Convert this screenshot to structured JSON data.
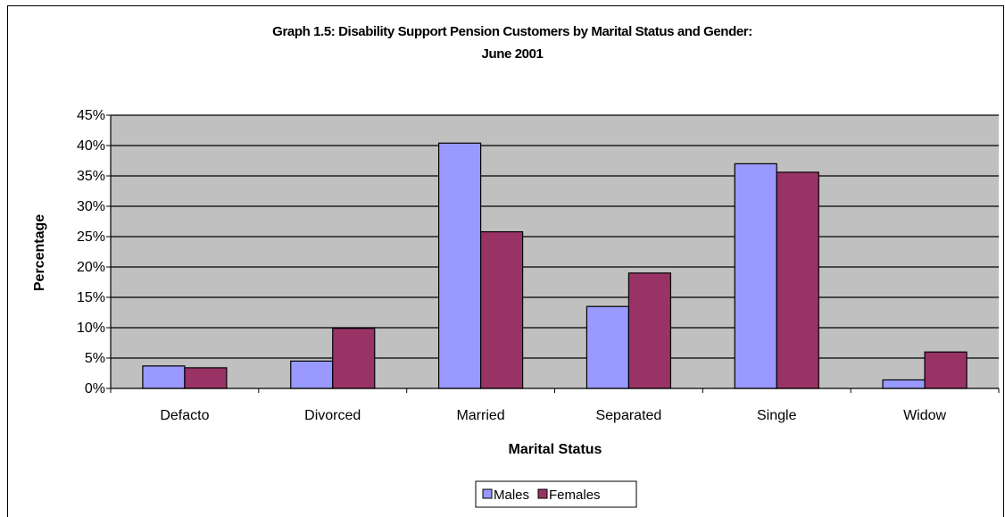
{
  "chart_data": {
    "type": "bar",
    "title_line1": "Graph 1.5: Disability Support Pension Customers by Marital Status and Gender:",
    "title_line2": "June 2001",
    "xlabel": "Marital Status",
    "ylabel": "Percentage",
    "categories": [
      "Defacto",
      "Divorced",
      "Married",
      "Separated",
      "Single",
      "Widow"
    ],
    "series": [
      {
        "name": "Males",
        "values": [
          3.7,
          4.5,
          40.4,
          13.5,
          37.0,
          1.4
        ],
        "color": "#9999ff"
      },
      {
        "name": "Females",
        "values": [
          3.4,
          9.9,
          25.8,
          19.0,
          35.6,
          6.0
        ],
        "color": "#993366"
      }
    ],
    "ylim": [
      0,
      45
    ],
    "yticks": [
      0,
      5,
      10,
      15,
      20,
      25,
      30,
      35,
      40,
      45
    ],
    "ytick_labels": [
      "0%",
      "5%",
      "10%",
      "15%",
      "20%",
      "25%",
      "30%",
      "35%",
      "40%",
      "45%"
    ],
    "grid": true,
    "plot_background": "#c0c0c0",
    "legend_position": "bottom"
  }
}
